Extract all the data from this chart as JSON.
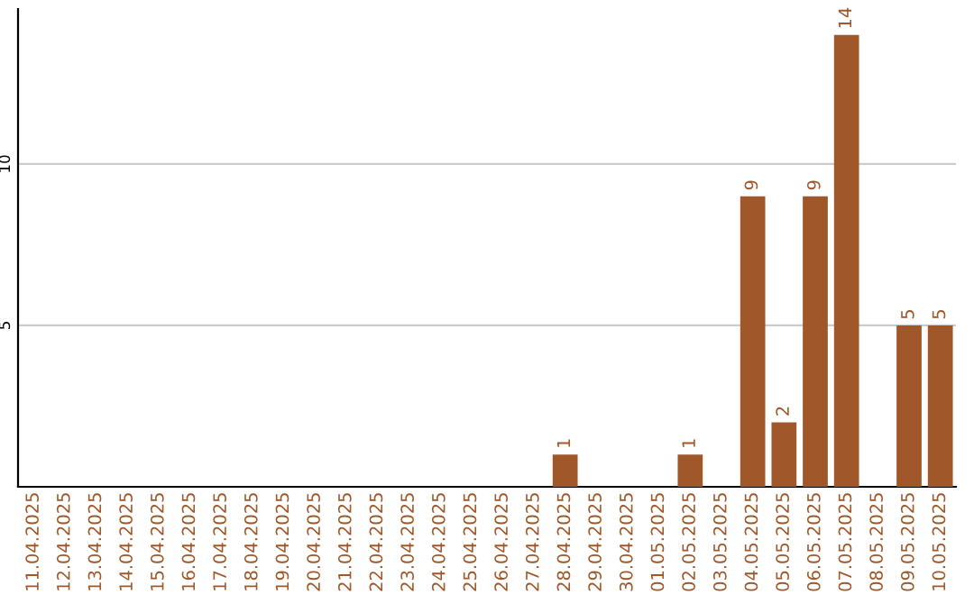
{
  "chart_data": {
    "type": "bar",
    "categories": [
      "11.04.2025",
      "12.04.2025",
      "13.04.2025",
      "14.04.2025",
      "15.04.2025",
      "16.04.2025",
      "17.04.2025",
      "18.04.2025",
      "19.04.2025",
      "20.04.2025",
      "21.04.2025",
      "22.04.2025",
      "23.04.2025",
      "24.04.2025",
      "25.04.2025",
      "26.04.2025",
      "27.04.2025",
      "28.04.2025",
      "29.04.2025",
      "30.04.2025",
      "01.05.2025",
      "02.05.2025",
      "03.05.2025",
      "04.05.2025",
      "05.05.2025",
      "06.05.2025",
      "07.05.2025",
      "08.05.2025",
      "09.05.2025",
      "10.05.2025"
    ],
    "values": [
      null,
      null,
      null,
      null,
      null,
      null,
      null,
      null,
      null,
      null,
      null,
      null,
      null,
      null,
      null,
      null,
      null,
      1,
      null,
      null,
      null,
      1,
      null,
      9,
      2,
      9,
      14,
      null,
      5,
      5
    ],
    "color": "#a0582a",
    "data_labels": true,
    "ylim": [
      0,
      14.8
    ],
    "yticks": [
      5,
      10
    ],
    "grid": "y"
  }
}
